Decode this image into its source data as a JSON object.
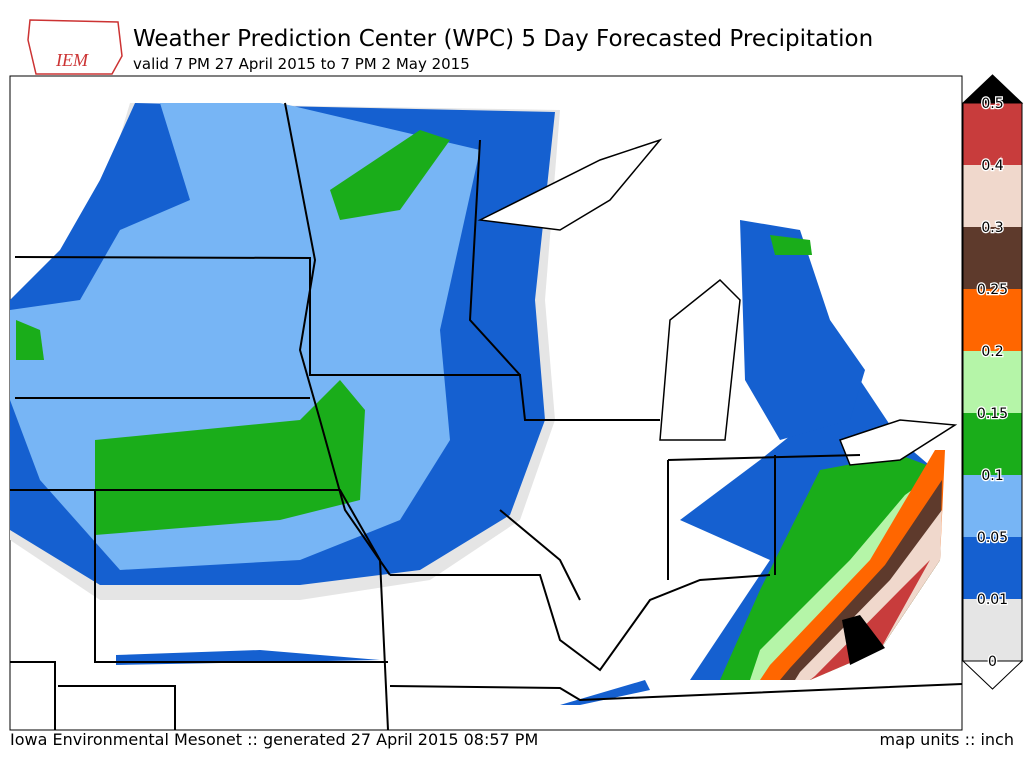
{
  "header": {
    "logo": "IEM",
    "title": "Weather Prediction Center (WPC) 5 Day Forecasted Precipitation",
    "subtitle": "valid 7 PM 27 April 2015 to 7 PM 2 May 2015"
  },
  "legend": {
    "levels": [
      0,
      0.01,
      0.05,
      0.1,
      0.15,
      0.2,
      0.25,
      0.3,
      0.4,
      0.5
    ],
    "colors": [
      "#e5e5e5",
      "#1560d0",
      "#77b5f5",
      "#1aad1a",
      "#b5f5a8",
      "#ff6600",
      "#5e3a2c",
      "#f0d8cc",
      "#c83c3c"
    ],
    "over_color": "#000000",
    "under_color": "#ffffff"
  },
  "footer": {
    "left": "Iowa Environmental Mesonet :: generated 27 April 2015 08:57 PM",
    "right": "map units :: inch"
  }
}
